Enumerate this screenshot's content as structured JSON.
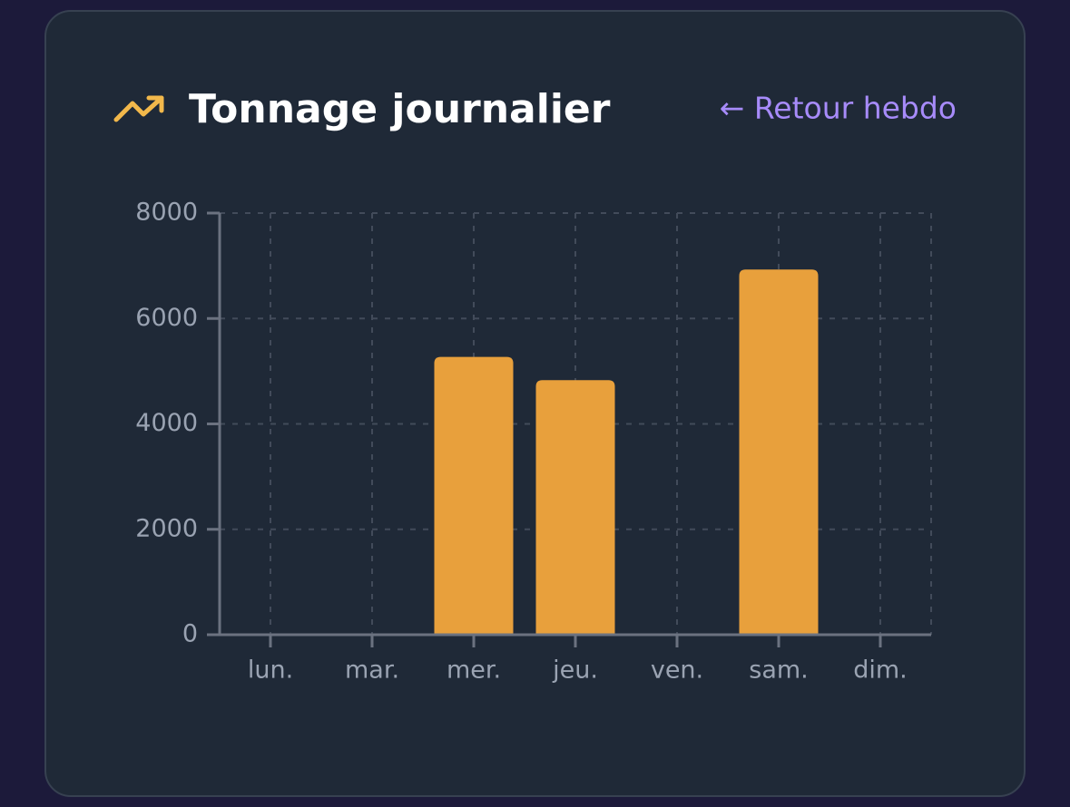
{
  "chart_data": {
    "type": "bar",
    "title": "Tonnage journalier",
    "back_link": "← Retour hebdo",
    "categories": [
      "lun.",
      "mar.",
      "mer.",
      "jeu.",
      "ven.",
      "sam.",
      "dim."
    ],
    "values": [
      0,
      0,
      5270,
      4830,
      0,
      6930,
      0
    ],
    "color": "#e8a03c",
    "ylim": [
      0,
      8000
    ],
    "yticks": [
      0,
      2000,
      4000,
      6000,
      8000
    ],
    "grid": true
  }
}
